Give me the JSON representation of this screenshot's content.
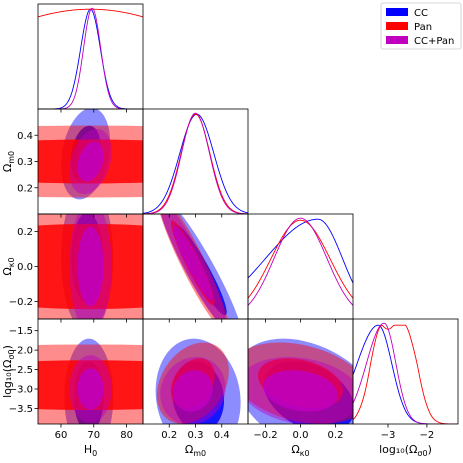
{
  "chart_data": {
    "type": "corner",
    "colors": {
      "CC": "#0000ff",
      "Pan": "#ff0000",
      "CC+Pan": "#bf00bf"
    },
    "legend": {
      "position": "top-right",
      "entries": [
        {
          "name": "CC",
          "color": "#0000ff"
        },
        {
          "name": "Pan",
          "color": "#ff0000"
        },
        {
          "name": "CC+Pan",
          "color": "#bf00bf"
        }
      ]
    },
    "parameters": [
      {
        "key": "H0",
        "label_main": "H",
        "label_sub": "0",
        "range": [
          53,
          85
        ],
        "ticks": [
          60,
          70,
          80
        ],
        "tick_labels": [
          "60",
          "70",
          "80"
        ]
      },
      {
        "key": "Om0",
        "label_main": "Ω",
        "label_sub": "m0",
        "range": [
          0.1,
          0.5
        ],
        "ticks": [
          0.2,
          0.3,
          0.4
        ],
        "tick_labels": [
          "0.2",
          "0.3",
          "0.4"
        ]
      },
      {
        "key": "Ok0",
        "label_main": "Ω",
        "label_sub": "κ0",
        "range": [
          -0.3,
          0.3
        ],
        "ticks": [
          -0.2,
          0.0,
          0.2
        ],
        "tick_labels": [
          "−0.2",
          "0.0",
          "0.2"
        ]
      },
      {
        "key": "logOd0",
        "label_main": "log₁₀(Ω",
        "label_sub": "σ0",
        "label_tail": ")",
        "range": [
          -3.9,
          -1.2
        ],
        "ticks": [
          -3.5,
          -3.0,
          -2.5,
          -2.0,
          -1.5
        ],
        "tick_labels": [
          "−3.5",
          "−3.0",
          "−2.5",
          "−2.0",
          "−1.5"
        ],
        "x_ticks": [
          -3.0,
          -2.0
        ],
        "x_tick_labels": [
          "−3",
          "−2"
        ]
      }
    ],
    "marginals": [
      {
        "param": "H0",
        "series": [
          {
            "name": "CC",
            "shape": "gauss",
            "mean": 69.0,
            "sd": 3.0,
            "peak": 0.99
          },
          {
            "name": "Pan",
            "shape": "gauss",
            "mean": 69.0,
            "sd": 40.0,
            "peak": 0.99
          },
          {
            "name": "CC+Pan",
            "shape": "gauss",
            "mean": 69.5,
            "sd": 2.6,
            "peak": 1.0
          }
        ]
      },
      {
        "param": "Om0",
        "series": [
          {
            "name": "CC",
            "shape": "gauss",
            "mean": 0.305,
            "sd": 0.065,
            "peak": 0.99
          },
          {
            "name": "Pan",
            "shape": "gauss",
            "mean": 0.3,
            "sd": 0.055,
            "peak": 0.99
          },
          {
            "name": "CC+Pan",
            "shape": "gauss",
            "mean": 0.3,
            "sd": 0.053,
            "peak": 1.0
          }
        ]
      },
      {
        "param": "Ok0",
        "series": [
          {
            "name": "CC",
            "shape": "skew",
            "mean": 0.1,
            "sdl": 0.3,
            "sdr": 0.14,
            "peak": 0.99
          },
          {
            "name": "Pan",
            "shape": "gauss",
            "mean": 0.0,
            "sd": 0.17,
            "peak": 0.98
          },
          {
            "name": "CC+Pan",
            "shape": "gauss",
            "mean": 0.0,
            "sd": 0.15,
            "peak": 1.0
          }
        ]
      },
      {
        "param": "logOd0",
        "series": [
          {
            "name": "CC",
            "shape": "skew",
            "mean": -3.25,
            "sdl": 0.55,
            "sdr": 0.35,
            "peak": 0.98
          },
          {
            "name": "Pan",
            "shape": "plateau",
            "lo": -3.15,
            "hi": -2.55,
            "w": 0.3,
            "peak": 0.98
          },
          {
            "name": "CC+Pan",
            "shape": "skew",
            "mean": -3.1,
            "sdl": 0.45,
            "sdr": 0.3,
            "peak": 1.0
          }
        ]
      }
    ],
    "contours": [
      {
        "row": 1,
        "col": 0,
        "sets": [
          {
            "name": "CC",
            "cx": 67.5,
            "cy": 0.33,
            "sx": 3.0,
            "sy": 0.07,
            "rho": 0.25
          },
          {
            "name": "Pan",
            "cx": 69.0,
            "cy": 0.3,
            "sx": 40,
            "sy": 0.055,
            "rho": 0.0
          },
          {
            "name": "CC+Pan",
            "cx": 69.0,
            "cy": 0.3,
            "sx": 2.6,
            "sy": 0.05,
            "rho": 0.3
          }
        ]
      },
      {
        "row": 2,
        "col": 0,
        "sets": [
          {
            "name": "CC",
            "cx": 68.0,
            "cy": 0.05,
            "sx": 3.2,
            "sy": 0.17,
            "rho": 0.0
          },
          {
            "name": "Pan",
            "cx": 69.0,
            "cy": 0.0,
            "sx": 40,
            "sy": 0.16,
            "rho": 0.0
          },
          {
            "name": "CC+Pan",
            "cx": 69.0,
            "cy": 0.0,
            "sx": 2.6,
            "sy": 0.15,
            "rho": 0.0
          }
        ]
      },
      {
        "row": 3,
        "col": 0,
        "sets": [
          {
            "name": "CC",
            "cx": 68.5,
            "cy": -3.2,
            "sx": 3.0,
            "sy": 0.6,
            "rho": 0.0
          },
          {
            "name": "Pan",
            "cx": 69.0,
            "cy": -2.9,
            "sx": 40,
            "sy": 0.42,
            "rho": 0.0
          },
          {
            "name": "CC+Pan",
            "cx": 69.0,
            "cy": -3.0,
            "sx": 2.6,
            "sy": 0.35,
            "rho": 0.0
          }
        ]
      },
      {
        "row": 2,
        "col": 1,
        "sets": [
          {
            "name": "CC",
            "cx": 0.32,
            "cy": -0.02,
            "sx": 0.065,
            "sy": 0.17,
            "rho": -0.93
          },
          {
            "name": "Pan",
            "cx": 0.29,
            "cy": 0.02,
            "sx": 0.055,
            "sy": 0.16,
            "rho": -0.93
          },
          {
            "name": "CC+Pan",
            "cx": 0.29,
            "cy": 0.02,
            "sx": 0.05,
            "sy": 0.14,
            "rho": -0.93
          }
        ]
      },
      {
        "row": 3,
        "col": 1,
        "sets": [
          {
            "name": "CC",
            "cx": 0.31,
            "cy": -3.2,
            "sx": 0.065,
            "sy": 0.6,
            "rho": -0.1
          },
          {
            "name": "Pan",
            "cx": 0.29,
            "cy": -2.85,
            "sx": 0.055,
            "sy": 0.42,
            "rho": 0.3
          },
          {
            "name": "CC+Pan",
            "cx": 0.29,
            "cy": -3.05,
            "sx": 0.05,
            "sy": 0.35,
            "rho": 0.1
          }
        ]
      },
      {
        "row": 3,
        "col": 2,
        "sets": [
          {
            "name": "CC",
            "cx": 0.05,
            "cy": -3.2,
            "sx": 0.17,
            "sy": 0.6,
            "rho": -0.35
          },
          {
            "name": "Pan",
            "cx": 0.0,
            "cy": -2.85,
            "sx": 0.16,
            "sy": 0.42,
            "rho": -0.3
          },
          {
            "name": "CC+Pan",
            "cx": 0.0,
            "cy": -3.05,
            "sx": 0.14,
            "sy": 0.35,
            "rho": -0.2
          }
        ]
      }
    ],
    "contour_levels": {
      "inner_sigma": 1.52,
      "outer_sigma": 2.49,
      "outer_opacity": 0.45,
      "inner_opacity": 0.85
    },
    "grid": false
  }
}
